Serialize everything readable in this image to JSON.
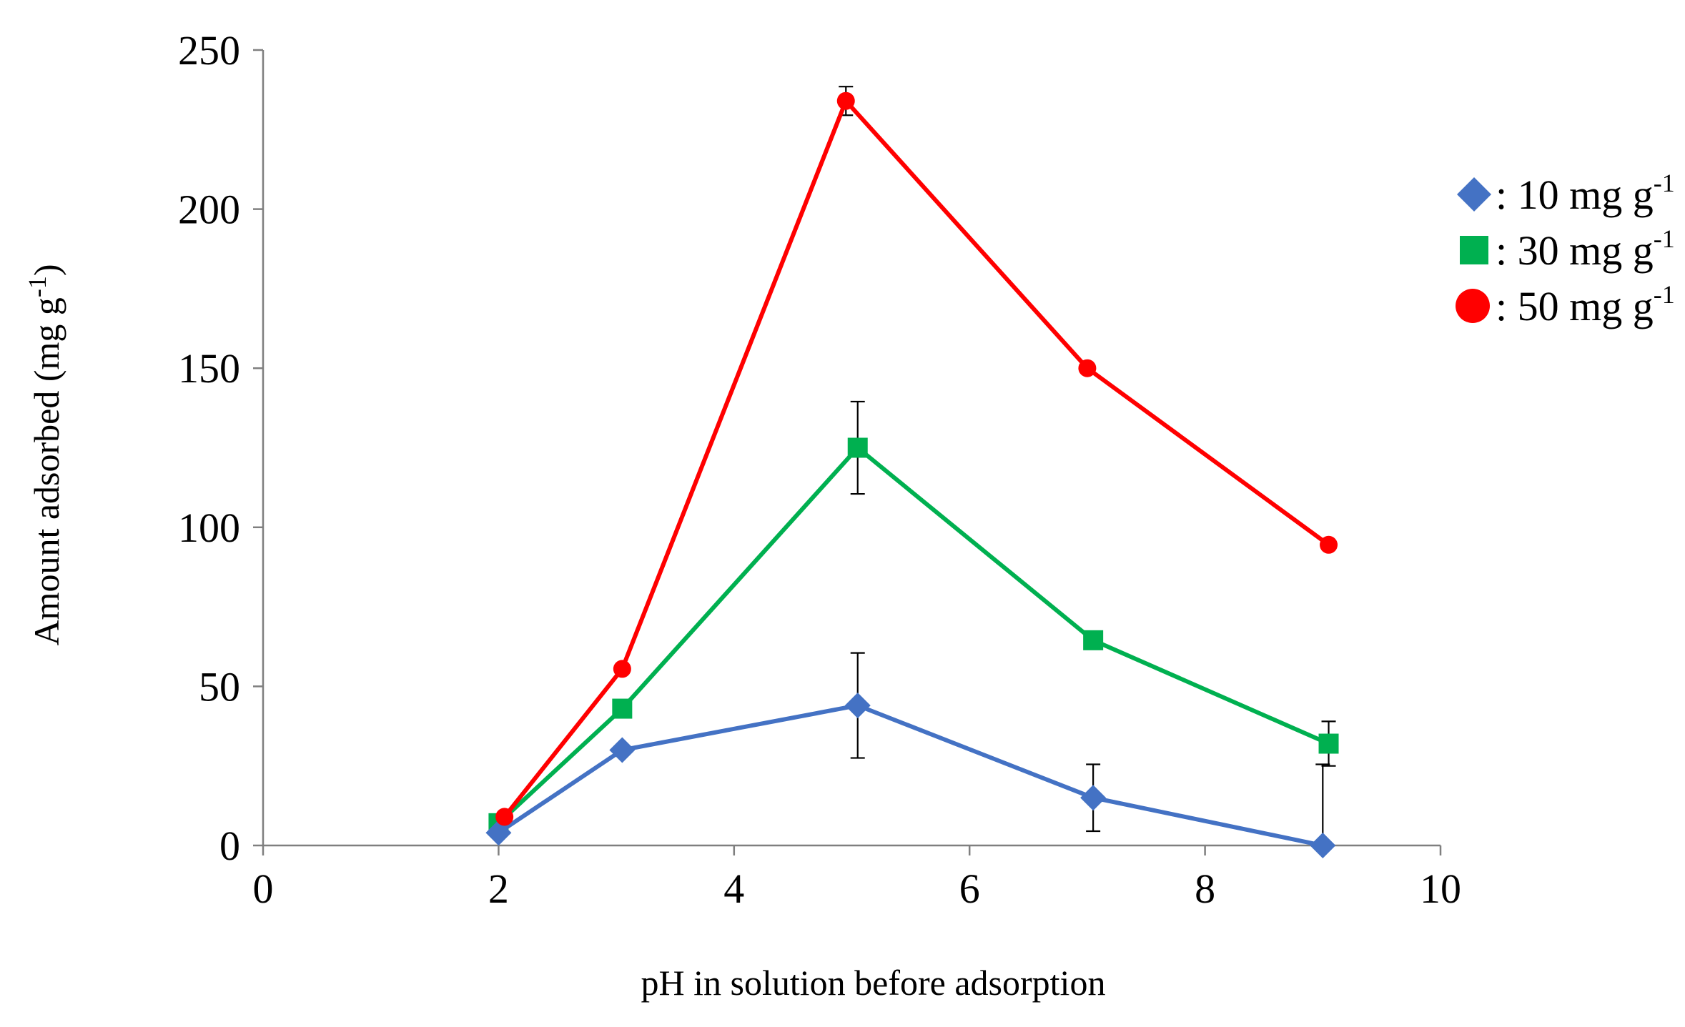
{
  "chart_data": {
    "type": "line",
    "xlabel": "pH in solution before adsorption",
    "ylabel": "Amount adsorbed (mg g",
    "ylabel_sup": "-1",
    "ylabel_end": ")",
    "xlim": [
      0,
      10
    ],
    "ylim": [
      0,
      250
    ],
    "xticks": [
      0,
      2,
      4,
      6,
      8,
      10
    ],
    "yticks": [
      0,
      50,
      100,
      150,
      200,
      250
    ],
    "xtick_labels": [
      "0",
      "2",
      "4",
      "6",
      "8",
      "10"
    ],
    "ytick_labels": [
      "0",
      "50",
      "100",
      "150",
      "200",
      "250"
    ],
    "grid": false,
    "legend_position": "top-right",
    "series": [
      {
        "name": ": 10 mg g",
        "name_sup": "-1",
        "marker": "diamond",
        "color": "#4472C4",
        "x": [
          2.0,
          3.05,
          5.05,
          7.05,
          9.0
        ],
        "y": [
          4,
          30,
          44,
          15,
          0
        ],
        "err": [
          0,
          0,
          16.5,
          10.5,
          25.5
        ]
      },
      {
        "name": ": 30 mg g",
        "name_sup": "-1",
        "marker": "square",
        "color": "#00B050",
        "x": [
          2.0,
          3.05,
          5.05,
          7.05,
          9.05
        ],
        "y": [
          7,
          43,
          125,
          64.5,
          32
        ],
        "err": [
          0,
          0,
          14.5,
          0,
          7
        ]
      },
      {
        "name": ": 50 mg g",
        "name_sup": "-1",
        "marker": "circle",
        "color": "#FF0000",
        "x": [
          2.05,
          3.05,
          4.95,
          7.0,
          9.05
        ],
        "y": [
          9,
          55.5,
          234,
          150,
          94.5
        ],
        "err": [
          0,
          0,
          4.5,
          0,
          0
        ]
      }
    ]
  }
}
